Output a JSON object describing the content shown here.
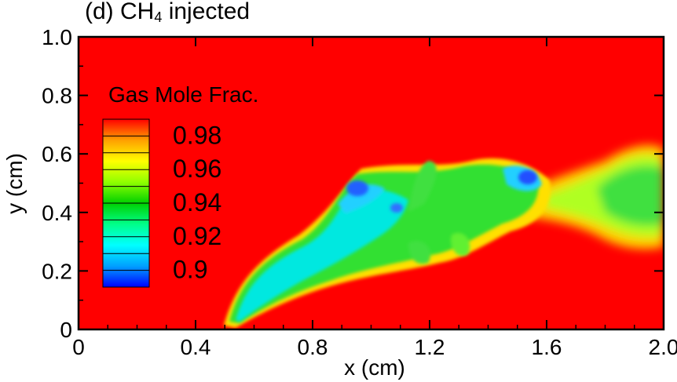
{
  "chart_data": {
    "type": "heatmap",
    "title_prefix": "(d) CH",
    "title_subscript": "4",
    "title_suffix": " injected",
    "xlabel": "x (cm)",
    "ylabel": "y (cm)",
    "xlim": [
      0,
      2.0
    ],
    "ylim": [
      0,
      1.0
    ],
    "x_ticks": [
      "0",
      "0.4",
      "0.8",
      "1.2",
      "1.6",
      "2.0"
    ],
    "y_ticks": [
      "0",
      "0.2",
      "0.4",
      "0.6",
      "0.8",
      "1.0"
    ],
    "colorbar": {
      "title": "Gas Mole Frac.",
      "min": 0.89,
      "max": 0.99,
      "labels": [
        "0.98",
        "0.96",
        "0.94",
        "0.92",
        "0.9"
      ],
      "colors": [
        "#0000ff",
        "#00a0ff",
        "#00ffff",
        "#00ff88",
        "#00d000",
        "#90ff00",
        "#ffff00",
        "#ffa000",
        "#ff0000"
      ]
    },
    "background_value": 0.99,
    "features": [
      {
        "region": "jet near injector",
        "x": [
          0.5,
          0.9
        ],
        "y": [
          0.0,
          0.3
        ],
        "value": 0.93
      },
      {
        "region": "mixing layer core",
        "x": [
          0.9,
          1.6
        ],
        "y": [
          0.25,
          0.55
        ],
        "value": 0.94
      },
      {
        "region": "downstream plume",
        "x": [
          1.6,
          2.0
        ],
        "y": [
          0.3,
          0.6
        ],
        "value": 0.96
      }
    ]
  }
}
